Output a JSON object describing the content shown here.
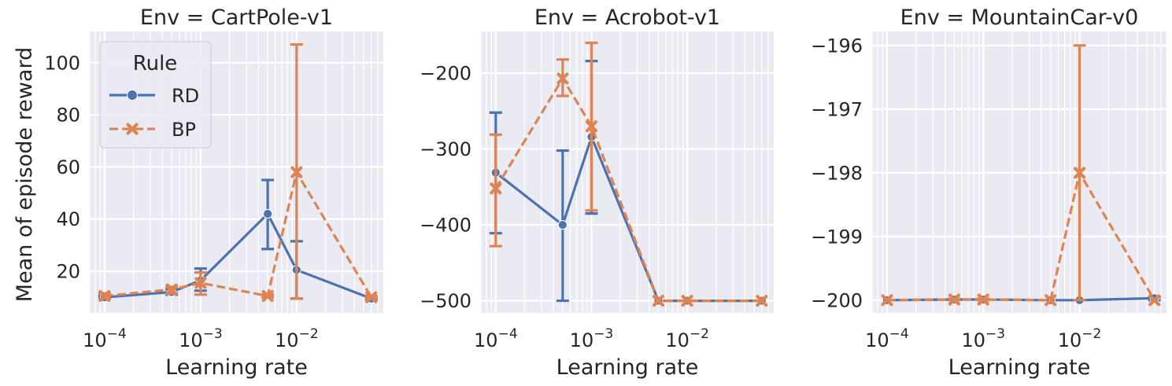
{
  "figure": {
    "ylabel": "Mean of episode reward",
    "legend": {
      "title": "Rule",
      "placement": "upper-left (first panel)",
      "entries": [
        {
          "label": "RD",
          "color": "#4c72b0",
          "marker": "circle",
          "dash": "solid"
        },
        {
          "label": "BP",
          "color": "#dd8452",
          "marker": "x",
          "dash": "dashed"
        }
      ]
    }
  },
  "chart_data": [
    {
      "type": "line",
      "title": "Env = CartPole-v1",
      "xlabel": "Learning rate",
      "xscale": "log",
      "xlim": [
        7e-05,
        0.08
      ],
      "ylim": [
        4,
        112
      ],
      "xticks": [
        {
          "value": 0.0001,
          "exp": "−4"
        },
        {
          "value": 0.001,
          "exp": "−3"
        },
        {
          "value": 0.01,
          "exp": "−2"
        }
      ],
      "yticks": [
        {
          "value": 20,
          "label": "20"
        },
        {
          "value": 40,
          "label": "40"
        },
        {
          "value": 60,
          "label": "60"
        },
        {
          "value": 80,
          "label": "80"
        },
        {
          "value": 100,
          "label": "100"
        }
      ],
      "x": [
        0.0001,
        0.0005,
        0.001,
        0.005,
        0.01,
        0.06
      ],
      "series": [
        {
          "name": "RD",
          "color": "#4c72b0",
          "marker": "circle",
          "dash": "solid",
          "values": [
            10,
            12,
            16.5,
            42,
            20.5,
            9.5
          ],
          "err_low": [
            9.5,
            11,
            12.5,
            28.5,
            9.5,
            9
          ],
          "err_high": [
            10.5,
            13,
            21,
            55,
            31.5,
            10
          ]
        },
        {
          "name": "BP",
          "color": "#dd8452",
          "marker": "x",
          "dash": "dashed",
          "values": [
            10.5,
            13,
            15.5,
            10.5,
            58,
            10
          ],
          "err_low": [
            9.5,
            11.5,
            11,
            10,
            9.5,
            9.5
          ],
          "err_high": [
            11.5,
            14,
            19.5,
            11,
            107,
            10.5
          ]
        }
      ]
    },
    {
      "type": "line",
      "title": "Env = Acrobot-v1",
      "xlabel": "Learning rate",
      "xscale": "log",
      "xlim": [
        7e-05,
        0.08
      ],
      "ylim": [
        -516,
        -145
      ],
      "xticks": [
        {
          "value": 0.0001,
          "exp": "−4"
        },
        {
          "value": 0.001,
          "exp": "−3"
        },
        {
          "value": 0.01,
          "exp": "−2"
        }
      ],
      "yticks": [
        {
          "value": -500,
          "label": "−500"
        },
        {
          "value": -400,
          "label": "−400"
        },
        {
          "value": -300,
          "label": "−300"
        },
        {
          "value": -200,
          "label": "−200"
        }
      ],
      "x": [
        0.0001,
        0.0005,
        0.001,
        0.005,
        0.01,
        0.06
      ],
      "series": [
        {
          "name": "RD",
          "color": "#4c72b0",
          "marker": "circle",
          "dash": "solid",
          "values": [
            -331,
            -400,
            -284,
            -500,
            -500,
            -500
          ],
          "err_low": [
            -411,
            -500,
            -385,
            -500,
            -500,
            -500
          ],
          "err_high": [
            -252,
            -302,
            -184,
            -500,
            -500,
            -500
          ]
        },
        {
          "name": "BP",
          "color": "#dd8452",
          "marker": "x",
          "dash": "dashed",
          "values": [
            -352,
            -207,
            -270,
            -500,
            -500,
            -500
          ],
          "err_low": [
            -428,
            -230,
            -381,
            -500,
            -500,
            -500
          ],
          "err_high": [
            -281,
            -182,
            -160,
            -500,
            -500,
            -500
          ]
        }
      ]
    },
    {
      "type": "line",
      "title": "Env = MountainCar-v0",
      "xlabel": "Learning rate",
      "xscale": "log",
      "xlim": [
        7e-05,
        0.08
      ],
      "ylim": [
        -200.2,
        -195.78
      ],
      "xticks": [
        {
          "value": 0.0001,
          "exp": "−4"
        },
        {
          "value": 0.001,
          "exp": "−3"
        },
        {
          "value": 0.01,
          "exp": "−2"
        }
      ],
      "yticks": [
        {
          "value": -200,
          "label": "−200"
        },
        {
          "value": -199,
          "label": "−199"
        },
        {
          "value": -198,
          "label": "−198"
        },
        {
          "value": -197,
          "label": "−197"
        },
        {
          "value": -196,
          "label": "−196"
        }
      ],
      "x": [
        0.0001,
        0.0005,
        0.001,
        0.005,
        0.01,
        0.06
      ],
      "series": [
        {
          "name": "RD",
          "color": "#4c72b0",
          "marker": "circle",
          "dash": "solid",
          "values": [
            -200,
            -199.99,
            -199.99,
            -200,
            -200,
            -199.97
          ],
          "err_low": [
            -200,
            -200,
            -200,
            -200,
            -200,
            -200
          ],
          "err_high": [
            -200,
            -199.98,
            -199.98,
            -200,
            -200,
            -199.95
          ]
        },
        {
          "name": "BP",
          "color": "#dd8452",
          "marker": "x",
          "dash": "dashed",
          "values": [
            -200,
            -199.99,
            -199.99,
            -200,
            -198,
            -200
          ],
          "err_low": [
            -200,
            -200,
            -200,
            -200,
            -200,
            -200
          ],
          "err_high": [
            -200,
            -199.98,
            -199.98,
            -200,
            -196,
            -200
          ]
        }
      ]
    }
  ]
}
